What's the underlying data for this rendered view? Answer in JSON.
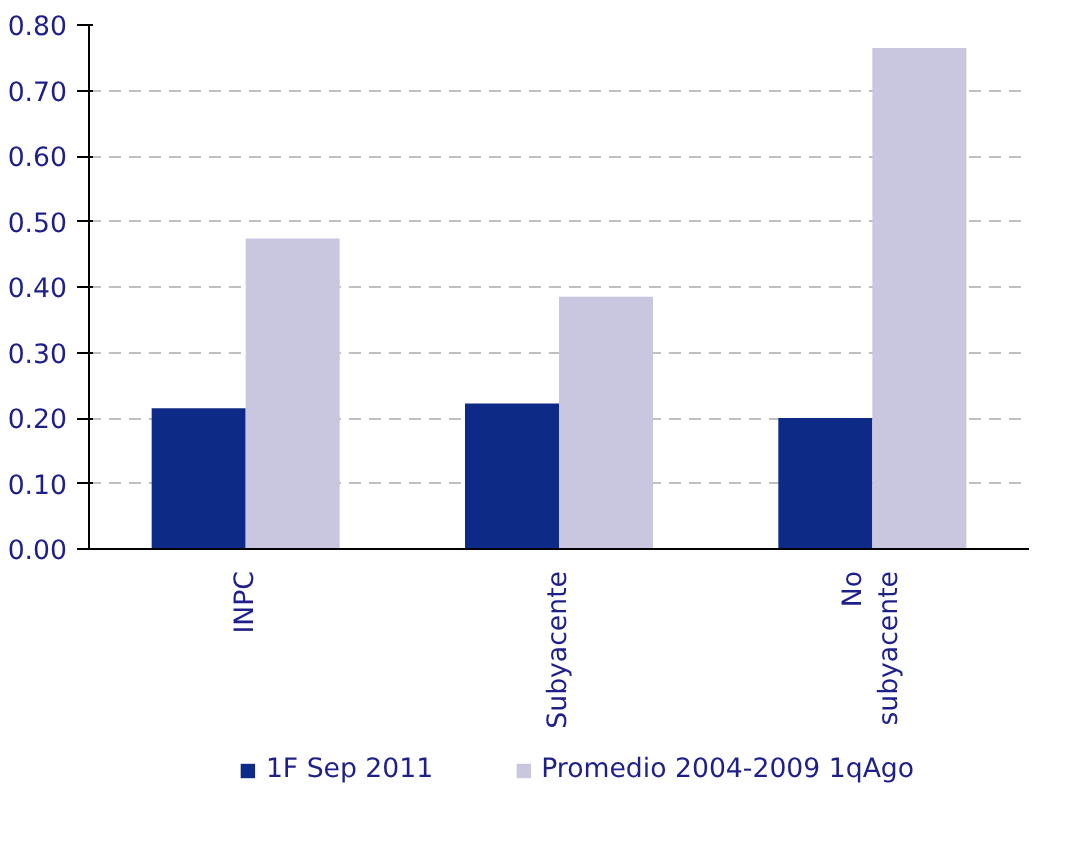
{
  "chart_data": {
    "type": "bar",
    "categories": [
      "INPC",
      "Subyacente",
      "No\nsubyacente"
    ],
    "series": [
      {
        "name": "1F Sep 2011",
        "color": "#0e2a87",
        "values": [
          0.215,
          0.222,
          0.2
        ]
      },
      {
        "name": "Promedio 2004-2009 1qAgo",
        "color": "#c9c7e0",
        "values": [
          0.474,
          0.385,
          0.765
        ]
      }
    ],
    "ylim": [
      0,
      0.8
    ],
    "yticks": [
      {
        "value": 0,
        "label": "0.00"
      },
      {
        "value": 0.1,
        "label": "0.10"
      },
      {
        "value": 0.2,
        "label": "0.20"
      },
      {
        "value": 0.3,
        "label": "0.30"
      },
      {
        "value": 0.4,
        "label": "0.40"
      },
      {
        "value": 0.5,
        "label": "0.50"
      },
      {
        "value": 0.6,
        "label": "0.60"
      },
      {
        "value": 0.7,
        "label": "0.70"
      },
      {
        "value": 0.8,
        "label": "0.80"
      }
    ],
    "grid": "y",
    "legend": "bottom"
  }
}
